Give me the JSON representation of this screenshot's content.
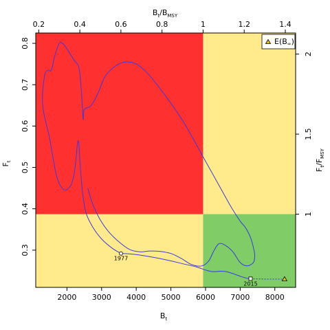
{
  "chart_data": {
    "type": "line",
    "x_axis": {
      "label_main": "B",
      "label_sub": "t",
      "range": [
        1100,
        8600
      ],
      "ticks": [
        2000,
        3000,
        4000,
        5000,
        6000,
        7000,
        8000
      ]
    },
    "y_axis": {
      "label_main": "F",
      "label_sub": "t",
      "range": [
        0.21,
        0.825
      ],
      "ticks": [
        0.3,
        0.4,
        0.5,
        0.6,
        0.7,
        0.8
      ]
    },
    "top_axis": {
      "label_main": "B",
      "label_sub1": "t",
      "label_sep": "/B",
      "label_sub2": "MSY",
      "ticks": [
        "0.2",
        "0.4",
        "0.6",
        "0.8",
        "1",
        "1.2",
        "1.4"
      ],
      "bmsy": 5930
    },
    "right_axis": {
      "label_main": "F",
      "label_sub1": "t",
      "label_sep": "/F",
      "label_sub2": "MSY",
      "ticks": [
        "1",
        "1.5",
        "2"
      ],
      "fmsy": 0.387
    },
    "quadrant_colors": {
      "red": "#ff3030",
      "yellow": "#ffea8c",
      "green": "#80cc66"
    },
    "line_color": "#3a3ae0",
    "series": [
      {
        "values": [
          [
            3560,
            0.292
          ],
          [
            3800,
            0.291
          ],
          [
            4200,
            0.287
          ],
          [
            4600,
            0.281
          ],
          [
            5000,
            0.274
          ],
          [
            5400,
            0.266
          ],
          [
            5750,
            0.259
          ],
          [
            6000,
            0.252
          ],
          [
            6200,
            0.248
          ],
          [
            6420,
            0.249
          ],
          [
            6600,
            0.248
          ],
          [
            6800,
            0.243
          ],
          [
            7000,
            0.237
          ],
          [
            7200,
            0.232
          ],
          [
            7300,
            0.231
          ]
        ]
      }
    ],
    "outer_envelope": [
      [
        3560,
        0.292
      ],
      [
        3300,
        0.305
      ],
      [
        3000,
        0.327
      ],
      [
        2750,
        0.355
      ],
      [
        2550,
        0.39
      ],
      [
        2450,
        0.44
      ],
      [
        2380,
        0.51
      ],
      [
        2340,
        0.56
      ],
      [
        2300,
        0.555
      ],
      [
        2220,
        0.49
      ],
      [
        2100,
        0.455
      ],
      [
        1900,
        0.447
      ],
      [
        1700,
        0.48
      ],
      [
        1500,
        0.57
      ],
      [
        1300,
        0.65
      ],
      [
        1350,
        0.72
      ],
      [
        1450,
        0.735
      ],
      [
        1550,
        0.735
      ],
      [
        1650,
        0.77
      ],
      [
        1780,
        0.8
      ],
      [
        1900,
        0.798
      ],
      [
        2050,
        0.78
      ],
      [
        2200,
        0.76
      ],
      [
        2350,
        0.74
      ],
      [
        2420,
        0.68
      ],
      [
        2470,
        0.617
      ],
      [
        2500,
        0.64
      ],
      [
        2700,
        0.65
      ],
      [
        2900,
        0.68
      ],
      [
        3100,
        0.72
      ],
      [
        3400,
        0.745
      ],
      [
        3700,
        0.755
      ],
      [
        4000,
        0.75
      ],
      [
        4300,
        0.73
      ],
      [
        4600,
        0.7
      ],
      [
        5000,
        0.655
      ],
      [
        5400,
        0.605
      ],
      [
        5900,
        0.53
      ],
      [
        6300,
        0.47
      ],
      [
        6700,
        0.41
      ],
      [
        7000,
        0.37
      ],
      [
        7150,
        0.355
      ],
      [
        7300,
        0.33
      ],
      [
        7400,
        0.3
      ],
      [
        7420,
        0.285
      ],
      [
        7380,
        0.27
      ],
      [
        7200,
        0.262
      ],
      [
        7000,
        0.27
      ],
      [
        6800,
        0.295
      ],
      [
        6600,
        0.31
      ],
      [
        6400,
        0.316
      ],
      [
        6250,
        0.3
      ],
      [
        6100,
        0.275
      ],
      [
        5900,
        0.262
      ],
      [
        5600,
        0.265
      ],
      [
        5300,
        0.28
      ],
      [
        5000,
        0.292
      ],
      [
        4700,
        0.297
      ],
      [
        4400,
        0.298
      ],
      [
        4100,
        0.296
      ],
      [
        3800,
        0.302
      ],
      [
        3500,
        0.32
      ],
      [
        3200,
        0.345
      ],
      [
        2950,
        0.375
      ],
      [
        2750,
        0.41
      ],
      [
        2600,
        0.45
      ]
    ],
    "projection": {
      "values": [
        [
          7300,
          0.231
        ],
        [
          7800,
          0.23
        ],
        [
          8280,
          0.23
        ]
      ],
      "style": "dotted"
    },
    "points": [
      {
        "label": "1977",
        "x": 3560,
        "y": 0.292,
        "marker": "circle"
      },
      {
        "label": "2015",
        "x": 7300,
        "y": 0.231,
        "marker": "square"
      },
      {
        "label": "",
        "x": 8280,
        "y": 0.23,
        "marker": "triangle"
      }
    ],
    "legend": {
      "label_main": "E(B",
      "label_sub": "∞",
      "label_end": ")",
      "placement": "top-right"
    }
  }
}
